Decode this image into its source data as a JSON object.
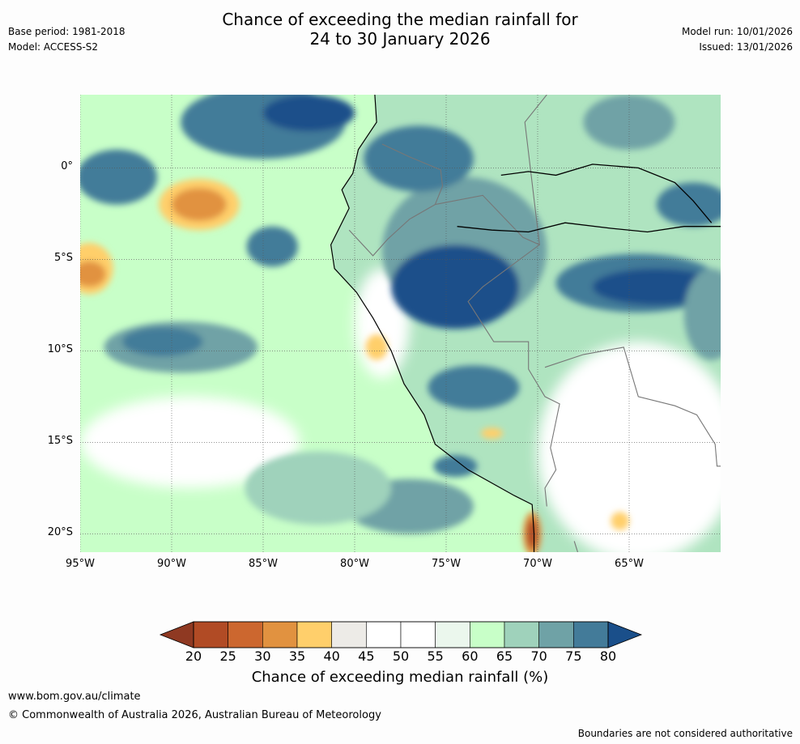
{
  "header": {
    "base_period": "Base period: 1981-2018",
    "model": "Model: ACCESS-S2",
    "title_line1": "Chance of exceeding the median rainfall for",
    "title_line2": "24 to 30 January 2026",
    "model_run": "Model run: 10/01/2026",
    "issued": "Issued: 13/01/2026"
  },
  "map": {
    "extent": {
      "lon_min": -95,
      "lon_max": -60,
      "lat_min": -21,
      "lat_max": 4
    },
    "lat_labels": [
      {
        "lat": 0,
        "label": "0°"
      },
      {
        "lat": -5,
        "label": "5°S"
      },
      {
        "lat": -10,
        "label": "10°S"
      },
      {
        "lat": -15,
        "label": "15°S"
      },
      {
        "lat": -20,
        "label": "20°S"
      }
    ],
    "lon_labels": [
      {
        "lon": -95,
        "label": "95°W"
      },
      {
        "lon": -90,
        "label": "90°W"
      },
      {
        "lon": -85,
        "label": "85°W"
      },
      {
        "lon": -80,
        "label": "80°W"
      },
      {
        "lon": -75,
        "label": "75°W"
      },
      {
        "lon": -70,
        "label": "70°W"
      },
      {
        "lon": -65,
        "label": "65°W"
      }
    ],
    "ocean_color": "#c8ffc8",
    "land_color": "#9fd2bb",
    "anomaly_blobs": [
      {
        "lon": -85,
        "lat": 2.5,
        "rx": 4.5,
        "ry": 2.0,
        "color": "#437b99"
      },
      {
        "lon": -82.5,
        "lat": 3.0,
        "rx": 2.5,
        "ry": 1.0,
        "color": "#1a4f8a"
      },
      {
        "lon": -93.0,
        "lat": -0.5,
        "rx": 2.2,
        "ry": 1.5,
        "color": "#437b99"
      },
      {
        "lon": -88.5,
        "lat": -2.0,
        "rx": 2.2,
        "ry": 1.4,
        "color": "#ffcf6b"
      },
      {
        "lon": -88.5,
        "lat": -2.0,
        "rx": 1.5,
        "ry": 0.9,
        "color": "#e19240"
      },
      {
        "lon": -84.5,
        "lat": -4.3,
        "rx": 1.4,
        "ry": 1.1,
        "color": "#437b99"
      },
      {
        "lon": -94.5,
        "lat": -5.5,
        "rx": 1.3,
        "ry": 1.4,
        "color": "#ffcf6b"
      },
      {
        "lon": -94.5,
        "lat": -5.8,
        "rx": 0.9,
        "ry": 0.7,
        "color": "#e19240"
      },
      {
        "lon": -89.5,
        "lat": -9.8,
        "rx": 4.2,
        "ry": 1.4,
        "color": "#6fa2a6"
      },
      {
        "lon": -90.5,
        "lat": -9.5,
        "rx": 2.2,
        "ry": 0.8,
        "color": "#437b99"
      },
      {
        "lon": -74.0,
        "lat": -4.5,
        "rx": 4.5,
        "ry": 4.0,
        "color": "#6fa2a6"
      },
      {
        "lon": -74.5,
        "lat": -6.5,
        "rx": 3.5,
        "ry": 2.3,
        "color": "#1a4f8a"
      },
      {
        "lon": -76.5,
        "lat": 0.5,
        "rx": 3.0,
        "ry": 1.8,
        "color": "#437b99"
      },
      {
        "lon": -64.5,
        "lat": -6.3,
        "rx": 4.5,
        "ry": 1.6,
        "color": "#437b99"
      },
      {
        "lon": -63.5,
        "lat": -6.5,
        "rx": 3.5,
        "ry": 1.0,
        "color": "#1a4f8a"
      },
      {
        "lon": -61.5,
        "lat": -2.0,
        "rx": 2.0,
        "ry": 1.2,
        "color": "#437b99"
      },
      {
        "lon": -65.0,
        "lat": 2.5,
        "rx": 2.5,
        "ry": 1.5,
        "color": "#6fa2a6"
      },
      {
        "lon": -73.5,
        "lat": -12.0,
        "rx": 2.5,
        "ry": 1.2,
        "color": "#437b99"
      },
      {
        "lon": -78.8,
        "lat": -9.8,
        "rx": 0.6,
        "ry": 0.7,
        "color": "#ffcf6b"
      },
      {
        "lon": -72.5,
        "lat": -14.5,
        "rx": 0.6,
        "ry": 0.3,
        "color": "#ffcf6b"
      },
      {
        "lon": -74.5,
        "lat": -16.3,
        "rx": 1.2,
        "ry": 0.6,
        "color": "#437b99"
      },
      {
        "lon": -70.3,
        "lat": -20.0,
        "rx": 0.5,
        "ry": 1.2,
        "color": "#e19240"
      },
      {
        "lon": -70.3,
        "lat": -20.0,
        "rx": 0.3,
        "ry": 0.8,
        "color": "#b14b25"
      },
      {
        "lon": -65.5,
        "lat": -19.3,
        "rx": 0.5,
        "ry": 0.5,
        "color": "#ffcf6b"
      },
      {
        "lon": -77.0,
        "lat": -18.5,
        "rx": 3.5,
        "ry": 1.5,
        "color": "#6fa2a6"
      },
      {
        "lon": -82.0,
        "lat": -17.5,
        "rx": 4.0,
        "ry": 2.0,
        "color": "#9fd2bb"
      },
      {
        "lon": -60.5,
        "lat": -8.0,
        "rx": 1.5,
        "ry": 2.5,
        "color": "#6fa2a6"
      }
    ],
    "white_areas": [
      {
        "lon": -64.5,
        "lat": -15.5,
        "rx": 5.5,
        "ry": 6.0
      },
      {
        "lon": -89.0,
        "lat": -15.0,
        "rx": 6.0,
        "ry": 2.5
      },
      {
        "lon": -78.5,
        "lat": -8.5,
        "rx": 1.5,
        "ry": 3.0
      }
    ],
    "coastline": [
      [
        -78.9,
        4.0
      ],
      [
        -78.8,
        2.5
      ],
      [
        -79.8,
        1.0
      ],
      [
        -80.1,
        -0.3
      ],
      [
        -80.7,
        -1.2
      ],
      [
        -80.3,
        -2.2
      ],
      [
        -80.9,
        -3.4
      ],
      [
        -81.3,
        -4.2
      ],
      [
        -81.1,
        -5.5
      ],
      [
        -79.9,
        -6.8
      ],
      [
        -79.0,
        -8.2
      ],
      [
        -78.0,
        -10.0
      ],
      [
        -77.3,
        -11.8
      ],
      [
        -76.2,
        -13.5
      ],
      [
        -75.6,
        -15.1
      ],
      [
        -73.8,
        -16.5
      ],
      [
        -71.3,
        -17.9
      ],
      [
        -70.3,
        -18.4
      ],
      [
        -70.2,
        -20.0
      ],
      [
        -70.2,
        -21.0
      ]
    ],
    "borders": [
      [
        [
          -78.5,
          1.3
        ],
        [
          -77.0,
          0.6
        ],
        [
          -75.3,
          -0.1
        ],
        [
          -75.2,
          -1.0
        ],
        [
          -75.6,
          -2.0
        ]
      ],
      [
        [
          -80.3,
          -3.4
        ],
        [
          -79.0,
          -4.8
        ],
        [
          -78.2,
          -3.9
        ],
        [
          -77.0,
          -2.8
        ],
        [
          -75.6,
          -2.0
        ]
      ],
      [
        [
          -75.6,
          -2.0
        ],
        [
          -73.0,
          -1.5
        ],
        [
          -70.8,
          -3.8
        ],
        [
          -69.9,
          -4.2
        ],
        [
          -70.7,
          2.5
        ],
        [
          -69.5,
          4.0
        ]
      ],
      [
        [
          -69.9,
          -4.2
        ],
        [
          -73.0,
          -6.5
        ],
        [
          -73.8,
          -7.3
        ],
        [
          -72.4,
          -9.5
        ],
        [
          -70.5,
          -9.5
        ],
        [
          -70.5,
          -11.0
        ],
        [
          -69.6,
          -12.5
        ],
        [
          -68.8,
          -12.9
        ],
        [
          -69.3,
          -15.3
        ],
        [
          -69.0,
          -16.5
        ],
        [
          -69.6,
          -17.5
        ],
        [
          -69.5,
          -18.5
        ]
      ],
      [
        [
          -68.0,
          -20.4
        ],
        [
          -67.5,
          -22.0
        ]
      ],
      [
        [
          -69.6,
          -10.9
        ],
        [
          -67.5,
          -10.2
        ],
        [
          -65.3,
          -9.8
        ],
        [
          -64.5,
          -12.5
        ],
        [
          -62.5,
          -13.0
        ],
        [
          -61.3,
          -13.5
        ],
        [
          -60.3,
          -15.1
        ],
        [
          -60.2,
          -16.3
        ],
        [
          -58.3,
          -16.3
        ]
      ]
    ],
    "river_line": [
      [
        -72.0,
        -0.4
      ],
      [
        -70.5,
        -0.2
      ],
      [
        -69.0,
        -0.4
      ],
      [
        -67.0,
        0.2
      ],
      [
        -64.5,
        0.0
      ],
      [
        -62.5,
        -0.8
      ],
      [
        -61.5,
        -1.8
      ],
      [
        -60.5,
        -3.0
      ]
    ],
    "river_line2": [
      [
        -74.4,
        -3.2
      ],
      [
        -72.5,
        -3.4
      ],
      [
        -70.5,
        -3.5
      ],
      [
        -68.5,
        -3.0
      ],
      [
        -66.0,
        -3.3
      ],
      [
        -64.0,
        -3.5
      ],
      [
        -62.0,
        -3.2
      ],
      [
        -60.0,
        -3.2
      ]
    ]
  },
  "colorbar": {
    "colors": [
      "#b14b25",
      "#cc672f",
      "#e19240",
      "#ffcf6b",
      "#edebe7",
      "#ffffff",
      "#ffffff",
      "#ebf7ed",
      "#c8ffc8",
      "#9fd2bb",
      "#6fa2a6",
      "#437b99"
    ],
    "under_color": "#8f3922",
    "over_color": "#1a4f8a",
    "ticks": [
      "20",
      "25",
      "30",
      "35",
      "40",
      "45",
      "50",
      "55",
      "60",
      "65",
      "70",
      "75",
      "80"
    ],
    "label": "Chance of exceeding median rainfall (%)"
  },
  "footer": {
    "url": "www.bom.gov.au/climate",
    "copyright": "© Commonwealth of Australia 2026, Australian Bureau of Meteorology",
    "note": "Boundaries are not considered authoritative"
  }
}
